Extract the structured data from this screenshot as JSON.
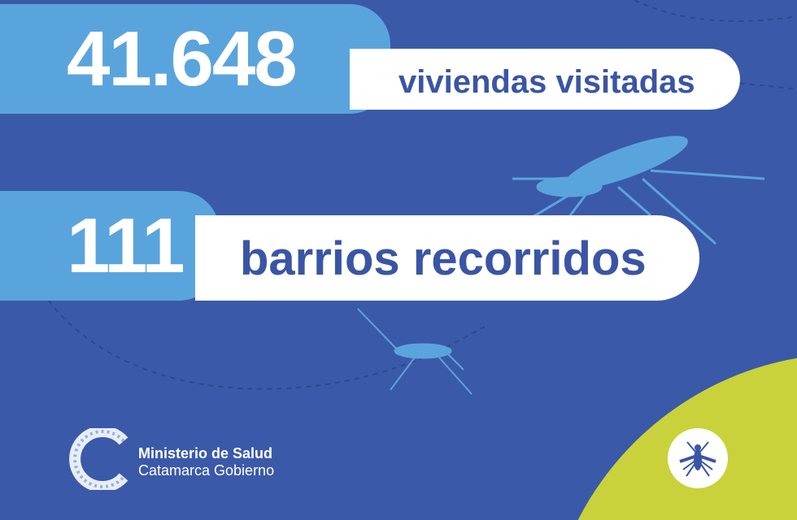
{
  "stats": [
    {
      "value": "41.648",
      "label": "viviendas visitadas"
    },
    {
      "value": "111",
      "label": "barrios recorridos"
    }
  ],
  "footer": {
    "org_line1": "Ministerio de Salud",
    "org_line2": "Catamarca Gobierno",
    "logo_icon": "catamarca-c-logo",
    "badge_icon": "mosquito-icon"
  },
  "colors": {
    "background": "#3b59a9",
    "accent_light_blue": "#5aa4dd",
    "text_dark_blue": "#3a55a5",
    "accent_lime": "#c9d23a"
  }
}
